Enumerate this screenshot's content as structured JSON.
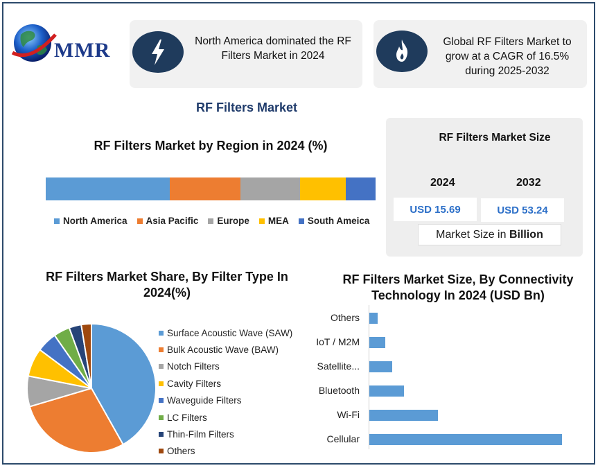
{
  "logo": {
    "text": "MMR",
    "icon": "globe-icon"
  },
  "stats": [
    {
      "icon": "lightning-icon",
      "text": "North America dominated the RF Filters Market in 2024"
    },
    {
      "icon": "flame-icon",
      "text": "Global RF Filters Market to grow at a CAGR of 16.5% during 2025-2032"
    }
  ],
  "main_title": "RF Filters Market",
  "market_size": {
    "title": "RF Filters Market Size",
    "years": [
      "2024",
      "2032"
    ],
    "values": [
      "USD 15.69",
      "USD 53.24"
    ],
    "unit_prefix": "Market Size in ",
    "unit_bold": "Billion"
  },
  "chart_data": [
    {
      "type": "bar",
      "orientation": "horizontal-stacked",
      "title": "RF Filters Market by Region in 2024 (%)",
      "series": [
        {
          "name": "North America",
          "value": 37.5,
          "color": "#5b9bd5"
        },
        {
          "name": "Asia Pacific",
          "value": 21.5,
          "color": "#ed7d31"
        },
        {
          "name": "Europe",
          "value": 18,
          "color": "#a5a5a5"
        },
        {
          "name": "MEA",
          "value": 14,
          "color": "#ffc000"
        },
        {
          "name": "South Ameica",
          "value": 9,
          "color": "#4472c4"
        }
      ],
      "legend": "bottom"
    },
    {
      "type": "pie",
      "title": "RF Filters Market Share, By Filter Type In 2024(%)",
      "labels": [
        "Surface Acoustic Wave (SAW)",
        "Bulk Acoustic Wave (BAW)",
        "Notch Filters",
        "Cavity Filters",
        "Waveguide Filters",
        "LC Filters",
        "Thin-Film Filters",
        "Others"
      ],
      "values": [
        41,
        28,
        7.5,
        7,
        5,
        4,
        3,
        2.5
      ],
      "colors": [
        "#5b9bd5",
        "#ed7d31",
        "#a5a5a5",
        "#ffc000",
        "#4472c4",
        "#70ad47",
        "#264478",
        "#9e480e"
      ],
      "legend": "right"
    },
    {
      "type": "bar",
      "orientation": "horizontal",
      "title": "RF Filters Market Size, By Connectivity Technology In 2024 (USD Bn)",
      "categories": [
        "Others",
        "IoT / M2M",
        "Satellite...",
        "Bluetooth",
        "Wi-Fi",
        "Cellular"
      ],
      "values": [
        0.6,
        1.1,
        1.6,
        2.4,
        4.8,
        13.4
      ],
      "xlim": [
        0,
        14
      ],
      "color": "#5b9bd5"
    }
  ]
}
